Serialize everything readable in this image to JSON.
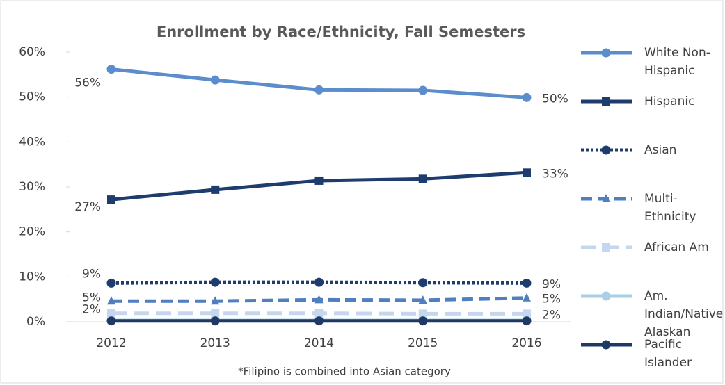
{
  "chart_data": {
    "type": "line",
    "title": "Enrollment by Race/Ethnicity, Fall Semesters",
    "footnote": "*Filipino is combined into Asian category",
    "categories": [
      "2012",
      "2013",
      "2014",
      "2015",
      "2016"
    ],
    "ylim": [
      0,
      60
    ],
    "yticks": [
      {
        "value": 0,
        "label": "0%"
      },
      {
        "value": 10,
        "label": "10%"
      },
      {
        "value": 20,
        "label": "20%"
      },
      {
        "value": 30,
        "label": "30%"
      },
      {
        "value": 40,
        "label": "40%"
      },
      {
        "value": 50,
        "label": "50%"
      },
      {
        "value": 60,
        "label": "60%"
      }
    ],
    "grid": false,
    "legend": "right",
    "series": [
      {
        "name": "White Non-Hispanic",
        "color": "#5b8ccc",
        "marker": "circle",
        "line_style": "solid",
        "values": [
          56.2,
          53.8,
          51.6,
          51.5,
          49.9
        ],
        "value_labels": [
          "56%",
          null,
          null,
          null,
          "50%"
        ]
      },
      {
        "name": "Hispanic",
        "color": "#1f3c6e",
        "marker": "square",
        "line_style": "solid",
        "values": [
          27.2,
          29.4,
          31.4,
          31.8,
          33.2
        ],
        "value_labels": [
          "27%",
          null,
          null,
          null,
          "33%"
        ]
      },
      {
        "name": "Asian",
        "color": "#1f3c6e",
        "marker": "circle",
        "line_style": "dotted",
        "values": [
          8.6,
          8.8,
          8.8,
          8.7,
          8.6
        ],
        "value_labels": [
          "9%",
          null,
          null,
          null,
          "9%"
        ]
      },
      {
        "name": "Multi-Ethnicity",
        "color": "#4f7fbf",
        "marker": "triangle",
        "line_style": "dashed",
        "values": [
          4.6,
          4.6,
          4.9,
          4.8,
          5.3
        ],
        "value_labels": [
          "5%",
          null,
          null,
          null,
          "5%"
        ]
      },
      {
        "name": "African Am",
        "color": "#c5d7ef",
        "marker": "square",
        "line_style": "longdash",
        "values": [
          1.9,
          1.9,
          1.9,
          1.8,
          1.8
        ],
        "value_labels": [
          "2%",
          null,
          null,
          null,
          "2%"
        ]
      },
      {
        "name": "Am. Indian/Native Alaskan",
        "color": "#a9cfe8",
        "marker": "circle",
        "line_style": "solid",
        "values": [
          0.3,
          0.3,
          0.3,
          0.3,
          0.3
        ]
      },
      {
        "name": "Pacific Islander",
        "color": "#1f3864",
        "marker": "circle",
        "line_style": "solid",
        "values": [
          0.2,
          0.2,
          0.2,
          0.2,
          0.2
        ]
      }
    ]
  }
}
